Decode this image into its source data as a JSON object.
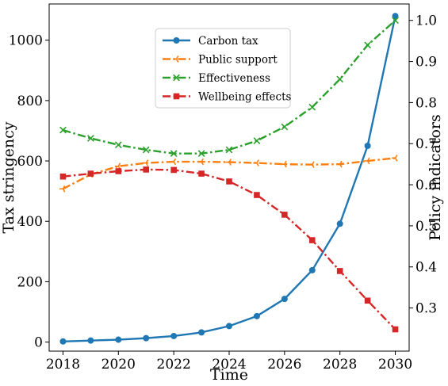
{
  "chart_data": {
    "type": "line",
    "xlabel": "Time",
    "ylabel_left": "Tax stringency",
    "ylabel_right": "Policy indicators",
    "xlim": [
      2017.5,
      2030.5
    ],
    "ylim_left": [
      -30,
      1120
    ],
    "ylim_right": [
      0.195,
      1.04
    ],
    "x_ticks": [
      2018,
      2020,
      2022,
      2024,
      2026,
      2028,
      2030
    ],
    "y_ticks_left": [
      0,
      200,
      400,
      600,
      800,
      1000
    ],
    "y_ticks_right": [
      0.3,
      0.4,
      0.5,
      0.6,
      0.7,
      0.8,
      0.9,
      1.0
    ],
    "legend_placement": "upper-center",
    "grid": false,
    "x": [
      2018,
      2019,
      2020,
      2021,
      2022,
      2023,
      2024,
      2025,
      2026,
      2027,
      2028,
      2029,
      2030
    ],
    "series": [
      {
        "name": "Carbon tax",
        "axis": "left",
        "color": "#1f77b4",
        "linestyle": "solid",
        "marker": "circle",
        "values": [
          2,
          5,
          8,
          13,
          20,
          32,
          53,
          86,
          143,
          238,
          392,
          650,
          1080
        ]
      },
      {
        "name": "Public support",
        "axis": "right",
        "color": "#ff7f0e",
        "linestyle": "dashdot",
        "marker": "tri",
        "values": [
          0.59,
          0.625,
          0.645,
          0.653,
          0.656,
          0.656,
          0.655,
          0.653,
          0.65,
          0.649,
          0.65,
          0.658,
          0.665
        ]
      },
      {
        "name": "Effectiveness",
        "axis": "right",
        "color": "#2ca02c",
        "linestyle": "dashdot",
        "marker": "x",
        "values": [
          0.733,
          0.713,
          0.697,
          0.685,
          0.676,
          0.676,
          0.685,
          0.707,
          0.741,
          0.789,
          0.857,
          0.94,
          1.0
        ]
      },
      {
        "name": "Wellbeing effects",
        "axis": "right",
        "color": "#d62728",
        "linestyle": "dashdot",
        "marker": "square",
        "values": [
          0.62,
          0.627,
          0.633,
          0.637,
          0.636,
          0.627,
          0.608,
          0.575,
          0.527,
          0.465,
          0.39,
          0.318,
          0.248
        ]
      }
    ]
  }
}
